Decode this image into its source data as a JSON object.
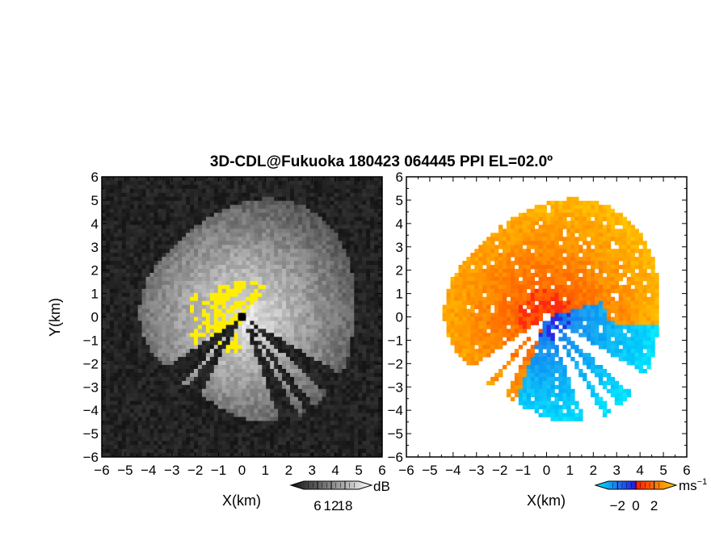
{
  "title": "3D-CDL@Fukuoka 180423 064445 PPI EL=02.0º",
  "chart_data": [
    {
      "type": "heatmap",
      "panel": "reflectivity",
      "xlabel": "X(km)",
      "ylabel": "Y(km)",
      "xlim": [
        -6,
        6
      ],
      "ylim": [
        -6,
        6
      ],
      "x_ticks": [
        "-6",
        "-5",
        "-4",
        "-3",
        "-2",
        "-1",
        "0",
        "1",
        "2",
        "3",
        "4",
        "5",
        "6"
      ],
      "y_ticks": [
        "6",
        "5",
        "4",
        "3",
        "2",
        "1",
        "0",
        "-1",
        "-2",
        "-3",
        "-4",
        "-5",
        "-6"
      ],
      "colorbar": {
        "unit": "dB",
        "ticks": [
          "6",
          "12",
          "18"
        ],
        "tick_values": [
          6,
          12,
          18
        ],
        "range": [
          0,
          24
        ],
        "colors": [
          "#111111",
          "#ffffff"
        ]
      },
      "background_color": "#1e1e1e",
      "overlay_color": "#ffee00",
      "blocked_sectors_deg": [
        [
          120,
          132
        ],
        [
          141,
          146
        ],
        [
          150,
          160
        ],
        [
          208,
          218
        ],
        [
          222,
          236
        ]
      ]
    },
    {
      "type": "heatmap",
      "panel": "doppler_velocity",
      "xlabel": "X(km)",
      "xlim": [
        -6,
        6
      ],
      "ylim": [
        -6,
        6
      ],
      "x_ticks": [
        "-6",
        "-5",
        "-4",
        "-3",
        "-2",
        "-1",
        "0",
        "1",
        "2",
        "3",
        "4",
        "5",
        "6"
      ],
      "y_ticks": [
        "6",
        "5",
        "4",
        "3",
        "2",
        "1",
        "0",
        "-1",
        "-2",
        "-3",
        "-4",
        "-5",
        "-6"
      ],
      "colorbar": {
        "unit": "ms",
        "unit_exponent": "−1",
        "ticks": [
          "−2",
          "0",
          "2"
        ],
        "tick_values": [
          -2,
          0,
          2
        ],
        "range": [
          -3,
          3
        ],
        "colors": [
          "#00e5ff",
          "#1e6ef0",
          "#2020e0",
          "#ff2000",
          "#ff7a00",
          "#ffcc00"
        ]
      },
      "background_color": "#ffffff",
      "positive_color": "#ff6a00",
      "negative_color": "#1e78f0"
    }
  ]
}
